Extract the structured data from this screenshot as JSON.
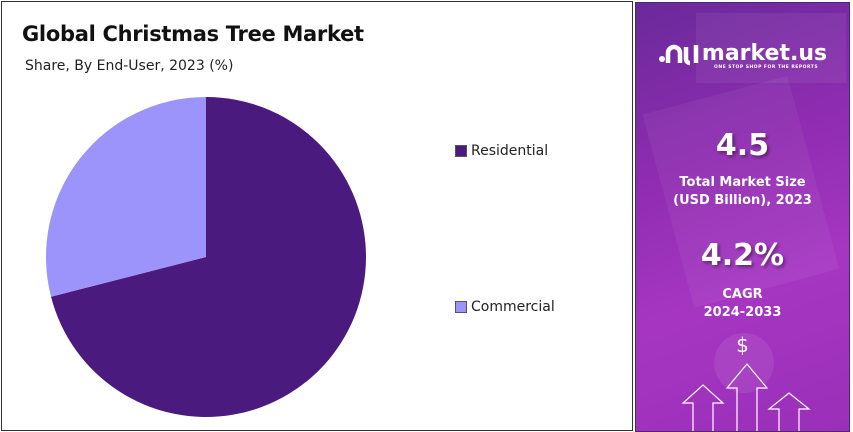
{
  "chart_data": {
    "type": "pie",
    "title": "Global Christmas Tree Market",
    "subtitle": "Share, By End-User, 2023 (%)",
    "categories": [
      "Residential",
      "Commercial"
    ],
    "values": [
      71,
      29
    ],
    "colors": [
      "#4b1a7f",
      "#9d94fb"
    ],
    "legend_position": "right",
    "start_angle": "top, clockwise"
  },
  "sidebar": {
    "brand": "market.us",
    "tagline": "ONE STOP SHOP FOR THE REPORTS",
    "market_size_value": "4.5",
    "market_size_label_1": "Total Market Size",
    "market_size_label_2": "(USD Billion), 2023",
    "cagr_value": "4.2%",
    "cagr_label_1": "CAGR",
    "cagr_label_2": "2024-2033",
    "dollar_symbol": "$"
  }
}
